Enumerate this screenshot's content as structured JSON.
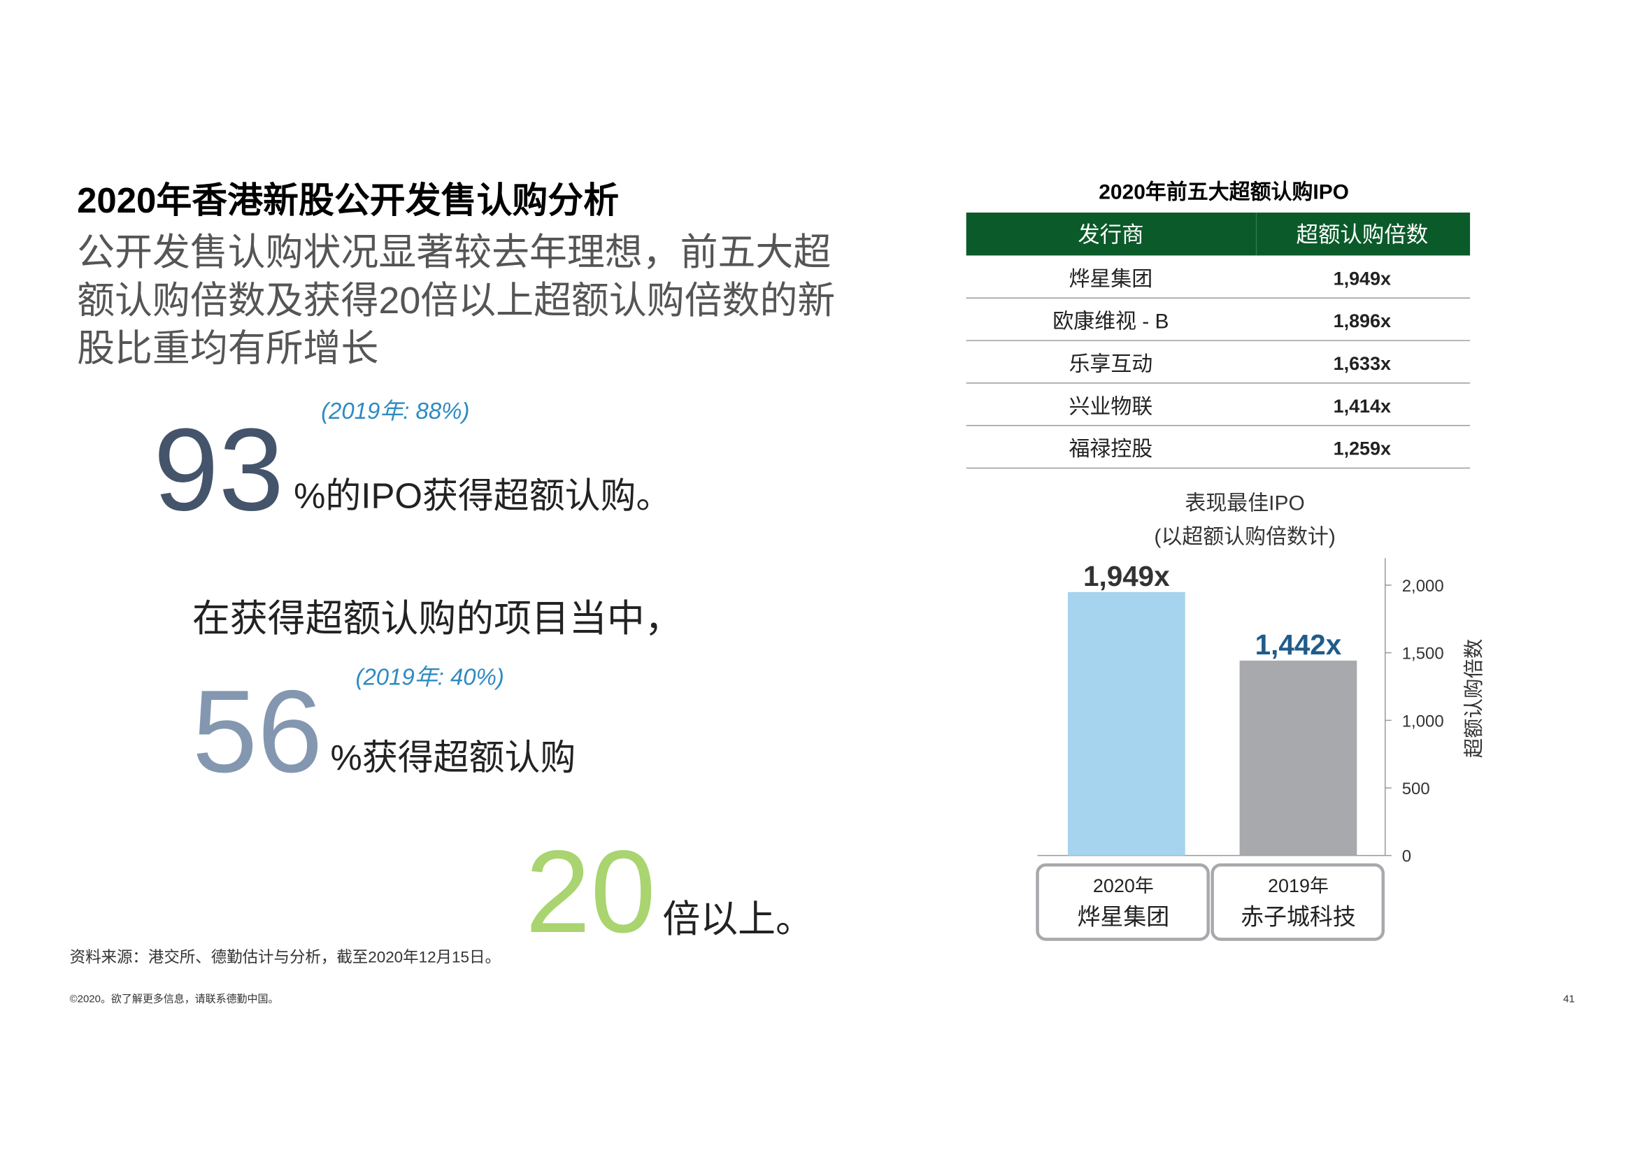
{
  "header": {
    "title": "2020年香港新股公开发售认购分析",
    "subtitle_lines": [
      "公开发售认购状况显著较去年理想，前五大超",
      "额认购倍数及获得20倍以上超额认购倍数的新",
      "股比重均有所增长"
    ]
  },
  "stats": [
    {
      "number": 93,
      "prior": "(2019年: 88%)",
      "text": "%的IPO获得超额认购。"
    },
    {
      "intro": "在获得超额认购的项目当中，",
      "number": 56,
      "prior": "(2019年: 40%)",
      "text": "%获得超额认购"
    },
    {
      "number": 20,
      "text": "倍以上。"
    }
  ],
  "table": {
    "title": "2020年前五大超额认购IPO",
    "headers": [
      "发行商",
      "超额认购倍数"
    ],
    "rows": [
      [
        "烨星集团",
        "1,949x"
      ],
      [
        "欧康维视 - B",
        "1,896x"
      ],
      [
        "乐享互动",
        "1,633x"
      ],
      [
        "兴业物联",
        "1,414x"
      ],
      [
        "福禄控股",
        "1,259x"
      ]
    ]
  },
  "chart_data": {
    "type": "bar",
    "title_lines": [
      "表现最佳IPO",
      "(以超额认购倍数计)"
    ],
    "category_years": [
      "2020年",
      "2019年"
    ],
    "categories": [
      "烨星集团",
      "赤子城科技"
    ],
    "values": [
      1949,
      1442
    ],
    "value_labels": [
      "1,949x",
      "1,442x"
    ],
    "colors": [
      "#a6d3ee",
      "#a7a9ac"
    ],
    "label_colors": [
      "#333333",
      "#1f5c8b"
    ],
    "ylabel": "超额认购倍数",
    "ylim": [
      0,
      2200
    ],
    "yticks": [
      0,
      500,
      {
        "value": 1000,
        "label": "1,000"
      },
      {
        "value": 1500,
        "label": "1,500"
      },
      {
        "value": 2000,
        "label": "2,000"
      }
    ],
    "axis_side": "right"
  },
  "source": "资料来源：港交所、德勤估计与分析，截至2020年12月15日。",
  "footer": "©2020。欲了解更多信息，请联系德勤中国。",
  "page_number": "41"
}
